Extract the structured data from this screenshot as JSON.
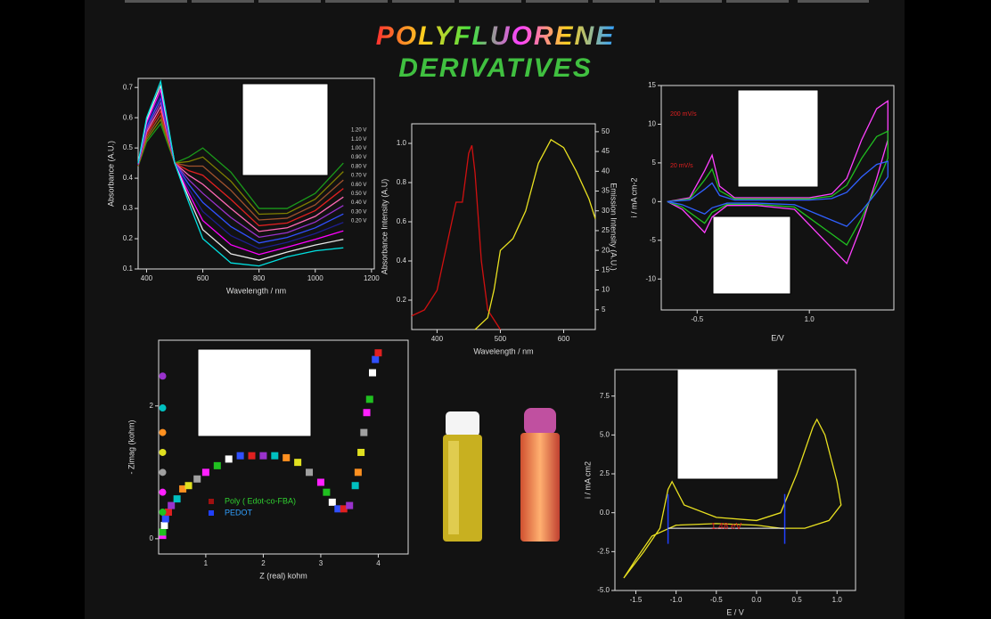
{
  "header": {
    "line1": "POLYFLUORENE",
    "line2": "DERIVATIVES"
  },
  "chart_data": [
    {
      "type": "line",
      "xlabel": "Wavelength / nm",
      "ylabel": "Absorbance (A.U.)",
      "xlim": [
        370,
        1210
      ],
      "ylim": [
        0.1,
        0.73
      ],
      "xticks": [
        400,
        600,
        800,
        1000,
        1200
      ],
      "yticks": [
        0.1,
        0.2,
        0.3,
        0.4,
        0.5,
        0.6,
        0.7
      ],
      "x": [
        370,
        400,
        450,
        500,
        550,
        600,
        700,
        800,
        900,
        1000,
        1100
      ],
      "series": [
        {
          "name": "1.20 V",
          "color": "#1a9a1a",
          "values": [
            0.44,
            0.52,
            0.58,
            0.45,
            0.47,
            0.5,
            0.42,
            0.3,
            0.3,
            0.35,
            0.45
          ]
        },
        {
          "name": "1.10 V",
          "color": "#808000",
          "values": [
            0.441,
            0.528,
            0.594,
            0.45,
            0.455,
            0.47,
            0.39,
            0.281,
            0.284,
            0.331,
            0.422
          ]
        },
        {
          "name": "1.00 V",
          "color": "#a0522d",
          "values": [
            0.442,
            0.536,
            0.608,
            0.45,
            0.44,
            0.44,
            0.36,
            0.262,
            0.268,
            0.312,
            0.394
          ]
        },
        {
          "name": "0.90 V",
          "color": "#e02020",
          "values": [
            0.443,
            0.544,
            0.622,
            0.45,
            0.425,
            0.41,
            0.33,
            0.243,
            0.252,
            0.293,
            0.366
          ]
        },
        {
          "name": "0.80 V",
          "color": "#ff69b4",
          "values": [
            0.444,
            0.552,
            0.636,
            0.45,
            0.41,
            0.38,
            0.3,
            0.224,
            0.236,
            0.274,
            0.338
          ]
        },
        {
          "name": "0.70 V",
          "color": "#9932cc",
          "values": [
            0.445,
            0.56,
            0.65,
            0.45,
            0.395,
            0.35,
            0.27,
            0.205,
            0.22,
            0.255,
            0.31
          ]
        },
        {
          "name": "0.60 V",
          "color": "#3050ff",
          "values": [
            0.446,
            0.568,
            0.664,
            0.45,
            0.38,
            0.32,
            0.24,
            0.186,
            0.204,
            0.236,
            0.282
          ]
        },
        {
          "name": "0.50 V",
          "color": "#1e1e90",
          "values": [
            0.447,
            0.576,
            0.678,
            0.45,
            0.365,
            0.29,
            0.21,
            0.167,
            0.188,
            0.217,
            0.254
          ]
        },
        {
          "name": "0.40 V",
          "color": "#ff00ff",
          "values": [
            0.448,
            0.584,
            0.692,
            0.45,
            0.35,
            0.26,
            0.18,
            0.148,
            0.172,
            0.198,
            0.226
          ]
        },
        {
          "name": "0.30 V",
          "color": "#e8e8e8",
          "values": [
            0.449,
            0.592,
            0.706,
            0.45,
            0.335,
            0.23,
            0.15,
            0.129,
            0.156,
            0.179,
            0.198
          ]
        },
        {
          "name": "0.20 V",
          "color": "#00e0e0",
          "values": [
            0.45,
            0.6,
            0.72,
            0.45,
            0.32,
            0.2,
            0.12,
            0.11,
            0.14,
            0.16,
            0.17
          ]
        }
      ]
    },
    {
      "type": "line",
      "xlabel": "Wavelength / nm",
      "ylabel": "Absorbance Intensity (A.U)",
      "y2label": "Emission Intensity (A.U.)",
      "xlim": [
        360,
        650
      ],
      "ylim": [
        0.05,
        1.1
      ],
      "y2lim": [
        0,
        52
      ],
      "xticks": [
        400,
        500,
        600
      ],
      "yticks": [
        0.2,
        0.4,
        0.6,
        0.8,
        {
          "value": 1,
          "label": "1.0"
        }
      ],
      "y2ticks": [
        5,
        10,
        15,
        20,
        25,
        30,
        35,
        40,
        45,
        50
      ],
      "series": [
        {
          "color": "#d01010",
          "x": [
            360,
            380,
            400,
            420,
            430,
            440,
            450,
            455,
            460,
            470,
            480,
            500
          ],
          "values": [
            0.12,
            0.15,
            0.25,
            0.55,
            0.7,
            0.7,
            0.95,
            0.99,
            0.85,
            0.4,
            0.15,
            0.05
          ]
        },
        {
          "color": "#e8e020",
          "axis": "y2",
          "x": [
            460,
            480,
            490,
            500,
            520,
            540,
            560,
            580,
            600,
            620,
            640,
            650
          ],
          "values": [
            0,
            3,
            10,
            20,
            23,
            30,
            42,
            48,
            46,
            40,
            33,
            28
          ]
        }
      ]
    },
    {
      "type": "line",
      "xlabel": "E/V",
      "ylabel": "i / mA cm-2",
      "xlim": [
        -0.98,
        2.13
      ],
      "ylim": [
        -14,
        15
      ],
      "xticks": [
        -0.5,
        {
          "value": 1,
          "label": "1.0"
        }
      ],
      "yticks": [
        -10,
        -5,
        0,
        5,
        10,
        15
      ],
      "annotations": [
        "200 mV/s",
        "20 mV/s"
      ],
      "x": [
        -0.9,
        -0.6,
        -0.4,
        -0.3,
        -0.2,
        0,
        0.5,
        1.0,
        1.3,
        1.5,
        1.7,
        1.9,
        2.05,
        2.05,
        1.9,
        1.7,
        1.5,
        1.2,
        0.8,
        0.3,
        -0.1,
        -0.3,
        -0.4,
        -0.5,
        -0.7,
        -0.9
      ],
      "series": [
        {
          "color": "#ff40ff",
          "values": [
            0,
            0.5,
            4,
            6,
            2,
            0.5,
            0.5,
            0.5,
            1,
            3,
            8,
            12,
            13,
            8,
            3,
            -3,
            -8,
            -5,
            -1,
            -0.5,
            -0.5,
            -2,
            -4,
            -3,
            -1,
            0
          ]
        },
        {
          "color": "#20c020",
          "values": [
            0,
            0.35,
            2.8,
            4.2,
            1.4,
            0.35,
            0.35,
            0.35,
            0.7,
            2.1,
            5.6,
            8.4,
            9.1,
            5.6,
            2.1,
            -2.1,
            -5.6,
            -3.5,
            -0.7,
            -0.35,
            -0.35,
            -1.4,
            -2.8,
            -2.1,
            -0.7,
            0
          ]
        },
        {
          "color": "#3060ff",
          "values": [
            0,
            0.2,
            1.6,
            2.4,
            0.8,
            0.2,
            0.2,
            0.2,
            0.4,
            1.2,
            3.2,
            4.8,
            5.2,
            3.2,
            1.2,
            -1.2,
            -3.2,
            -2,
            -0.4,
            -0.2,
            -0.2,
            -0.8,
            -1.6,
            -1.2,
            -0.4,
            0
          ]
        }
      ]
    },
    {
      "type": "scatter",
      "xlabel": "Z (real) kohm",
      "ylabel": "- Zimag (kohm)",
      "xlim": [
        0.18,
        4.52
      ],
      "ylim": [
        -0.23,
        2.99
      ],
      "xticks": [
        1,
        2,
        3,
        4
      ],
      "yticks": [
        0,
        2
      ],
      "point_colors": [
        "#ff20ff",
        "#20c020",
        "#ffffff",
        "#3050ff",
        "#e02020",
        "#9932cc",
        "#00c0c0",
        "#ff9020",
        "#e0e020",
        "#a0a0a0"
      ],
      "series": [
        {
          "name": "Poly ( Edot-co-FBA)",
          "color": "#a01010",
          "x": [
            0.25,
            0.25,
            0.28,
            0.3,
            0.35,
            0.4,
            0.5,
            0.6,
            0.7,
            0.85,
            1.0,
            1.2,
            1.4,
            1.6,
            1.8,
            2.0,
            2.2,
            2.4,
            2.6,
            2.8,
            3.0,
            3.1,
            3.2,
            3.3,
            3.4,
            3.5,
            3.6,
            3.65,
            3.7,
            3.75,
            3.8,
            3.85,
            3.9,
            3.95,
            4.0,
            0.25,
            0.25,
            0.25,
            0.25,
            0.25,
            0.25,
            0.25
          ],
          "values": [
            0.05,
            0.1,
            0.2,
            0.3,
            0.4,
            0.5,
            0.6,
            0.75,
            0.8,
            0.9,
            1.0,
            1.1,
            1.2,
            1.25,
            1.25,
            1.25,
            1.25,
            1.22,
            1.15,
            1.0,
            0.85,
            0.7,
            0.55,
            0.45,
            0.45,
            0.5,
            0.8,
            1.0,
            1.3,
            1.6,
            1.9,
            2.1,
            2.5,
            2.7,
            2.8,
            2.45,
            1.97,
            1.6,
            1.3,
            1.0,
            0.7,
            0.4
          ]
        },
        {
          "name": "PEDOT",
          "color": "#2040ff"
        }
      ]
    },
    {
      "type": "line",
      "xlabel": "E / V",
      "ylabel": "i / mA cm2",
      "xlim": [
        -1.76,
        1.23
      ],
      "ylim": [
        -5,
        9.2
      ],
      "xticks": [
        -1.5,
        {
          "value": -1,
          "label": "-1.0"
        },
        -0.5,
        {
          "value": 0,
          "label": "0.0"
        },
        0.5,
        {
          "value": 1,
          "label": "1.0"
        }
      ],
      "yticks": [
        {
          "value": -5,
          "label": "-5.0"
        },
        -2.5,
        {
          "value": 0,
          "label": "0.0"
        },
        2.5,
        {
          "value": 5,
          "label": "5.0"
        },
        7.5
      ],
      "annotations": [
        "1.48 eV"
      ],
      "markers": [
        -1.1,
        0.35
      ],
      "series": [
        {
          "color": "#e8e020",
          "x": [
            -1.65,
            -1.4,
            -1.2,
            -1.1,
            -1.05,
            -0.9,
            -0.5,
            0,
            0.3,
            0.5,
            0.7,
            0.75,
            0.85,
            1.0,
            1.05,
            0.9,
            0.6,
            0.3,
            0,
            -0.5,
            -1.0,
            -1.3,
            -1.5,
            -1.65
          ],
          "values": [
            -4.2,
            -2.5,
            -1.0,
            1.5,
            2.0,
            0.5,
            -0.3,
            -0.5,
            0,
            2.5,
            5.5,
            6.0,
            5.0,
            2.0,
            0.5,
            -0.5,
            -1.0,
            -1.0,
            -0.8,
            -0.7,
            -0.8,
            -1.5,
            -3.0,
            -4.2
          ]
        }
      ]
    }
  ]
}
